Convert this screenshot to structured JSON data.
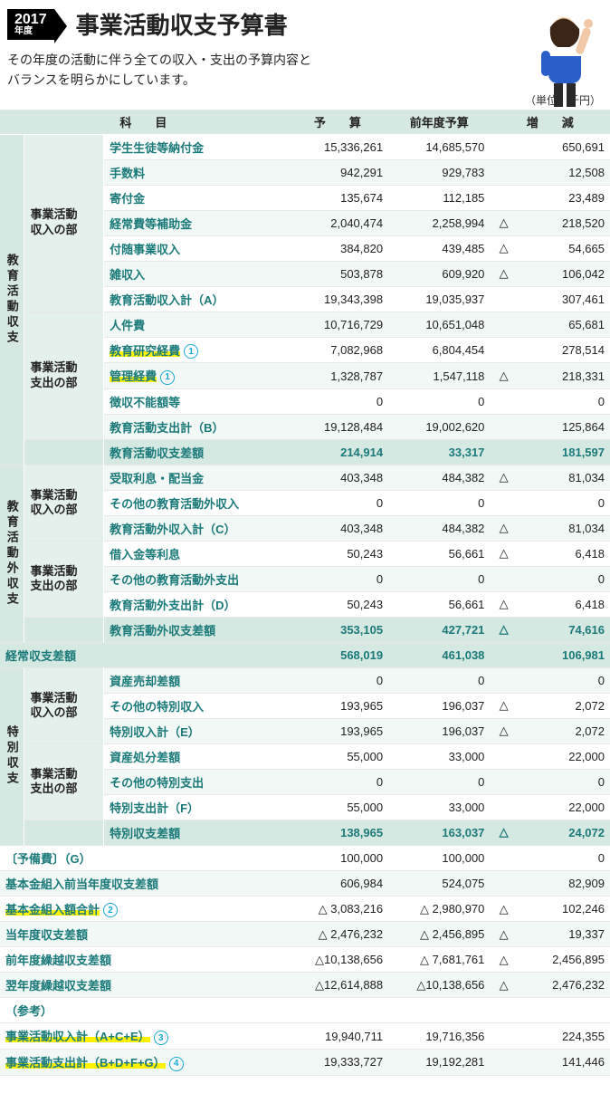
{
  "header": {
    "year": "2017",
    "year_label": "年度",
    "title": "事業活動収支予算書",
    "subtitle_l1": "その年度の活動に伴う全ての収入・支出の予算内容と",
    "subtitle_l2": "バランスを明らかにしています。",
    "unit": "（単位：千円）"
  },
  "columns": {
    "c0": "科　　目",
    "c1": "予　　算",
    "c2": "前年度予算",
    "c3": "増　　減"
  },
  "colors": {
    "header_bg": "#d6e8e2",
    "subcat_bg": "#e4f0ec",
    "alt_bg": "#f2f8f6",
    "item_text": "#1a7a7a",
    "highlight": "#fff200",
    "circle": "#17a7d4"
  },
  "sections": [
    {
      "vcat": "教育活動収支",
      "groups": [
        {
          "subcat": "事業活動\n収入の部",
          "rows": [
            {
              "item": "学生生徒等納付金",
              "b": "15,336,261",
              "p": "14,685,570",
              "dt": "",
              "d": "650,691"
            },
            {
              "item": "手数料",
              "b": "942,291",
              "p": "929,783",
              "dt": "",
              "d": "12,508",
              "alt": true
            },
            {
              "item": "寄付金",
              "b": "135,674",
              "p": "112,185",
              "dt": "",
              "d": "23,489"
            },
            {
              "item": "経常費等補助金",
              "b": "2,040,474",
              "p": "2,258,994",
              "dt": "△",
              "d": "218,520",
              "alt": true
            },
            {
              "item": "付随事業収入",
              "b": "384,820",
              "p": "439,485",
              "dt": "△",
              "d": "54,665"
            },
            {
              "item": "雑収入",
              "b": "503,878",
              "p": "609,920",
              "dt": "△",
              "d": "106,042",
              "alt": true
            },
            {
              "item": "教育活動収入計（A）",
              "b": "19,343,398",
              "p": "19,035,937",
              "dt": "",
              "d": "307,461"
            }
          ]
        },
        {
          "subcat": "事業活動\n支出の部",
          "rows": [
            {
              "item": "人件費",
              "b": "10,716,729",
              "p": "10,651,048",
              "dt": "",
              "d": "65,681",
              "alt": true
            },
            {
              "item": "教育研究経費",
              "b": "7,082,968",
              "p": "6,804,454",
              "dt": "",
              "d": "278,514",
              "hl": true,
              "circ": "①"
            },
            {
              "item": "管理経費",
              "b": "1,328,787",
              "p": "1,547,118",
              "dt": "△",
              "d": "218,331",
              "alt": true,
              "hl": true,
              "circ": "①"
            },
            {
              "item": "徴収不能額等",
              "b": "0",
              "p": "0",
              "dt": "",
              "d": "0"
            },
            {
              "item": "教育活動支出計（B）",
              "b": "19,128,484",
              "p": "19,002,620",
              "dt": "",
              "d": "125,864",
              "alt": true
            }
          ]
        }
      ],
      "total": {
        "item": "教育活動収支差額",
        "b": "214,914",
        "p": "33,317",
        "dt": "",
        "d": "181,597",
        "sum": true
      }
    },
    {
      "vcat": "教育活動外収支",
      "groups": [
        {
          "subcat": "事業活動\n収入の部",
          "rows": [
            {
              "item": "受取利息・配当金",
              "b": "403,348",
              "p": "484,382",
              "dt": "△",
              "d": "81,034",
              "alt": true
            },
            {
              "item": "その他の教育活動外収入",
              "b": "0",
              "p": "0",
              "dt": "",
              "d": "0"
            },
            {
              "item": "教育活動外収入計（C）",
              "b": "403,348",
              "p": "484,382",
              "dt": "△",
              "d": "81,034",
              "alt": true
            }
          ]
        },
        {
          "subcat": "事業活動\n支出の部",
          "rows": [
            {
              "item": "借入金等利息",
              "b": "50,243",
              "p": "56,661",
              "dt": "△",
              "d": "6,418"
            },
            {
              "item": "その他の教育活動外支出",
              "b": "0",
              "p": "0",
              "dt": "",
              "d": "0",
              "alt": true
            },
            {
              "item": "教育活動外支出計（D）",
              "b": "50,243",
              "p": "56,661",
              "dt": "△",
              "d": "6,418"
            }
          ]
        }
      ],
      "total": {
        "item": "教育活動外収支差額",
        "b": "353,105",
        "p": "427,721",
        "dt": "△",
        "d": "74,616",
        "sum": true
      }
    }
  ],
  "mid_total": {
    "item": "経常収支差額",
    "b": "568,019",
    "p": "461,038",
    "dt": "",
    "d": "106,981",
    "sum": true
  },
  "special": {
    "vcat": "特別収支",
    "groups": [
      {
        "subcat": "事業活動\n収入の部",
        "rows": [
          {
            "item": "資産売却差額",
            "b": "0",
            "p": "0",
            "dt": "",
            "d": "0",
            "alt": true
          },
          {
            "item": "その他の特別収入",
            "b": "193,965",
            "p": "196,037",
            "dt": "△",
            "d": "2,072"
          },
          {
            "item": "特別収入計（E）",
            "b": "193,965",
            "p": "196,037",
            "dt": "△",
            "d": "2,072",
            "alt": true
          }
        ]
      },
      {
        "subcat": "事業活動\n支出の部",
        "rows": [
          {
            "item": "資産処分差額",
            "b": "55,000",
            "p": "33,000",
            "dt": "",
            "d": "22,000"
          },
          {
            "item": "その他の特別支出",
            "b": "0",
            "p": "0",
            "dt": "",
            "d": "0",
            "alt": true
          },
          {
            "item": "特別支出計（F）",
            "b": "55,000",
            "p": "33,000",
            "dt": "",
            "d": "22,000"
          }
        ]
      }
    ],
    "total": {
      "item": "特別収支差額",
      "b": "138,965",
      "p": "163,037",
      "dt": "△",
      "d": "24,072",
      "sum": true
    }
  },
  "footer_rows": [
    {
      "item": "〔予備費〕（G）",
      "b": "100,000",
      "p": "100,000",
      "dt": "",
      "d": "0"
    },
    {
      "item": "基本金組入前当年度収支差額",
      "b": "606,984",
      "p": "524,075",
      "dt": "",
      "d": "82,909",
      "alt": true
    },
    {
      "item": "基本金組入額合計",
      "b": "△ 3,083,216",
      "p": "△ 2,980,970",
      "dt": "△",
      "d": "102,246",
      "hl": true,
      "circ": "②"
    },
    {
      "item": "当年度収支差額",
      "b": "△ 2,476,232",
      "p": "△ 2,456,895",
      "dt": "△",
      "d": "19,337",
      "alt": true
    },
    {
      "item": "前年度繰越収支差額",
      "b": "△10,138,656",
      "p": "△ 7,681,761",
      "dt": "△",
      "d": "2,456,895"
    },
    {
      "item": "翌年度繰越収支差額",
      "b": "△12,614,888",
      "p": "△10,138,656",
      "dt": "△",
      "d": "2,476,232",
      "alt": true
    }
  ],
  "reference": {
    "label": "（参考）",
    "rows": [
      {
        "item": "事業活動収入計（A+C+E）",
        "b": "19,940,711",
        "p": "19,716,356",
        "dt": "",
        "d": "224,355",
        "hl": true,
        "circ": "③"
      },
      {
        "item": "事業活動支出計（B+D+F+G）",
        "b": "19,333,727",
        "p": "19,192,281",
        "dt": "",
        "d": "141,446",
        "hl": true,
        "circ": "④",
        "alt": true
      }
    ]
  }
}
